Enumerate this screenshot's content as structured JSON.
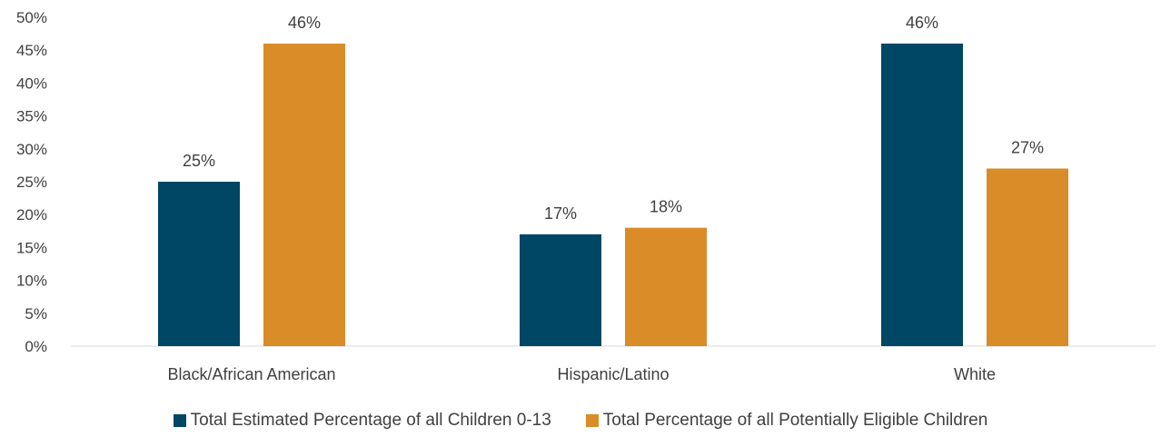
{
  "chart_data": {
    "type": "bar",
    "categories": [
      "Black/African American",
      "Hispanic/Latino",
      "White"
    ],
    "series": [
      {
        "name": "Total Estimated Percentage of all Children 0-13",
        "values": [
          25,
          17,
          46
        ],
        "labels": [
          "25%",
          "17%",
          "46%"
        ],
        "color": "#004766"
      },
      {
        "name": "Total Percentage of all Potentially Eligible Children",
        "values": [
          46,
          18,
          27
        ],
        "labels": [
          "46%",
          "18%",
          "27%"
        ],
        "color": "#d98c28"
      }
    ],
    "ylim": [
      0,
      50
    ],
    "yticks": [
      "0%",
      "5%",
      "10%",
      "15%",
      "20%",
      "25%",
      "30%",
      "35%",
      "40%",
      "45%",
      "50%"
    ],
    "grid": false,
    "legend_position": "bottom"
  }
}
